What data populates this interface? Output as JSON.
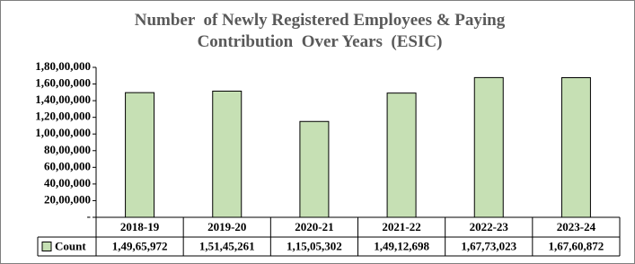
{
  "chart_data": {
    "type": "bar",
    "title": "Number  of Newly Registered Employees & Paying Contribution  Over Years  (ESIC)",
    "categories": [
      "2018-19",
      "2019-20",
      "2020-21",
      "2021-22",
      "2022-23",
      "2023-24"
    ],
    "series": [
      {
        "name": "Count",
        "color": "#c6e0b4",
        "values": [
          14965972,
          15145261,
          11505302,
          14912698,
          16773023,
          16760872
        ],
        "value_labels": [
          "1,49,65,972",
          "1,51,45,261",
          "1,15,05,302",
          "1,49,12,698",
          "1,67,73,023",
          "1,67,60,872"
        ]
      }
    ],
    "ylim": [
      0,
      18000000
    ],
    "yticks": [
      {
        "value": 0,
        "label": "-"
      },
      {
        "value": 2000000,
        "label": "20,00,000"
      },
      {
        "value": 4000000,
        "label": "40,00,000"
      },
      {
        "value": 6000000,
        "label": "60,00,000"
      },
      {
        "value": 8000000,
        "label": "80,00,000"
      },
      {
        "value": 10000000,
        "label": "1,00,00,000"
      },
      {
        "value": 12000000,
        "label": "1,20,00,000"
      },
      {
        "value": 14000000,
        "label": "1,40,00,000"
      },
      {
        "value": 16000000,
        "label": "1,60,00,000"
      },
      {
        "value": 18000000,
        "label": "1,80,00,000"
      }
    ],
    "grid": false
  }
}
